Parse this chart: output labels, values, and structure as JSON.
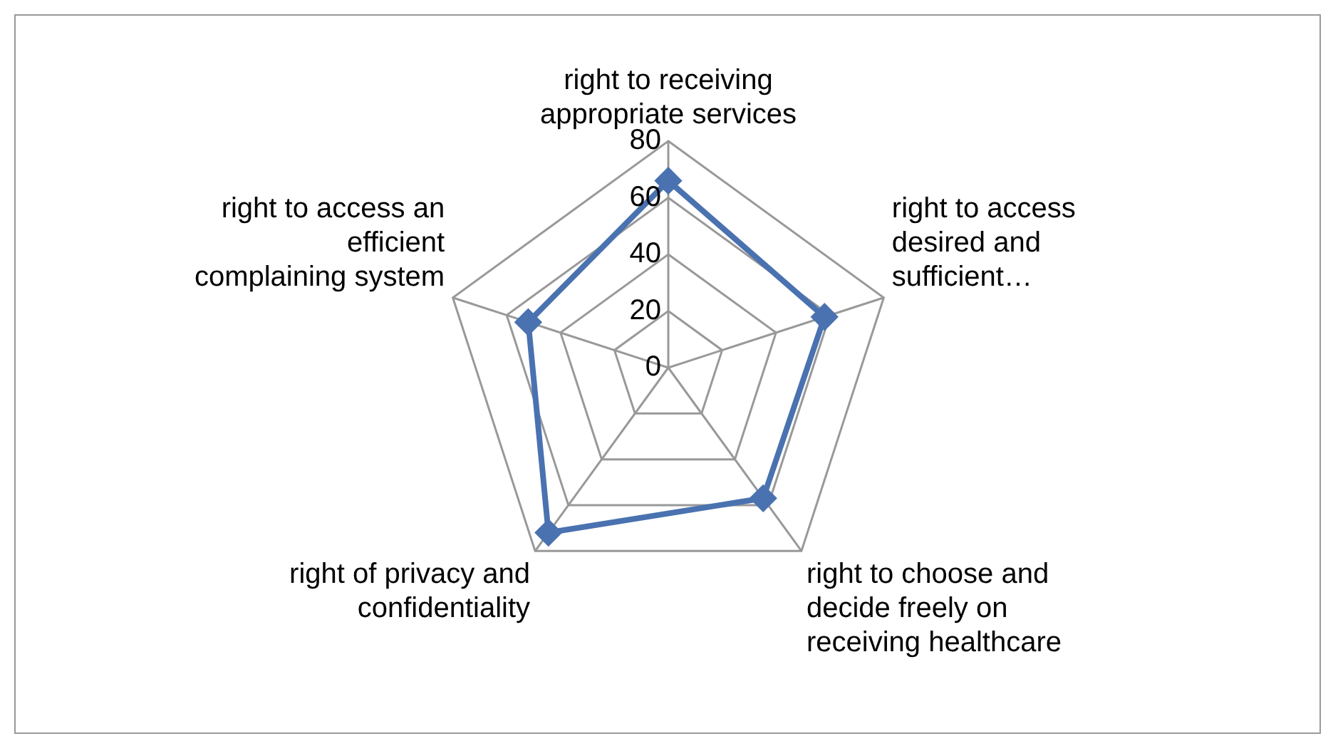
{
  "chart_data": {
    "type": "radar",
    "categories": [
      "right to receiving appropriate services",
      "right to access desired and sufficient…",
      "right to choose and decide freely on receiving healthcare",
      "right of privacy and confidentiality",
      "right to access an efficient complaining system"
    ],
    "series": [
      {
        "color": "#4a72b0",
        "values": [
          66,
          58,
          57,
          72,
          52
        ]
      }
    ],
    "ylim": [
      0,
      80
    ],
    "yticks": [
      0,
      20,
      40,
      60,
      80
    ],
    "grid": true,
    "legend": false,
    "marker": "diamond",
    "line_style": "solid"
  }
}
